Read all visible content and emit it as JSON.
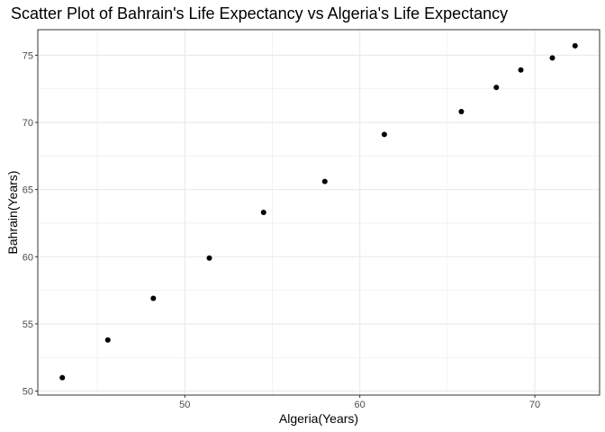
{
  "chart_data": {
    "type": "scatter",
    "title": "Scatter Plot of Bahrain's Life Expectancy vs Algeria's Life Expectancy",
    "xlabel": "Algeria(Years)",
    "ylabel": "Bahrain(Years)",
    "xlim": [
      41.6,
      73.7
    ],
    "ylim": [
      49.7,
      76.9
    ],
    "x_ticks": [
      50,
      60,
      70
    ],
    "y_ticks": [
      50,
      55,
      60,
      65,
      70,
      75
    ],
    "x_minor_ticks": [
      45,
      55,
      65
    ],
    "y_minor_ticks": [
      52.5,
      57.5,
      62.5,
      67.5,
      72.5
    ],
    "grid": true,
    "legend": "none",
    "point_color": "#000000",
    "points": [
      {
        "x": 43.0,
        "y": 51.0
      },
      {
        "x": 45.6,
        "y": 53.8
      },
      {
        "x": 48.2,
        "y": 56.9
      },
      {
        "x": 51.4,
        "y": 59.9
      },
      {
        "x": 54.5,
        "y": 63.3
      },
      {
        "x": 58.0,
        "y": 65.6
      },
      {
        "x": 61.4,
        "y": 69.1
      },
      {
        "x": 65.8,
        "y": 70.8
      },
      {
        "x": 67.8,
        "y": 72.6
      },
      {
        "x": 69.2,
        "y": 73.9
      },
      {
        "x": 71.0,
        "y": 74.8
      },
      {
        "x": 72.3,
        "y": 75.7
      }
    ]
  }
}
